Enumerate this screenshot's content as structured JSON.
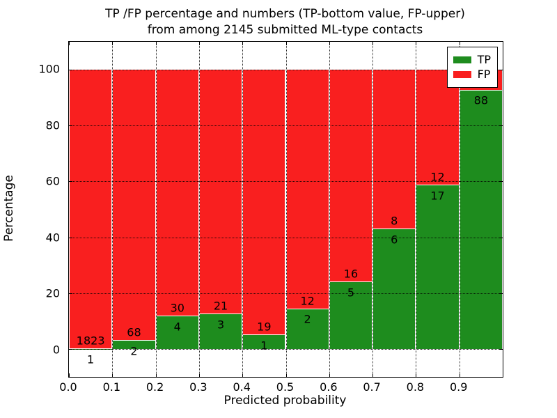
{
  "chart_data": {
    "type": "bar",
    "variant": "stacked-percentage-histogram",
    "title_lines": [
      "TP /FP percentage and numbers (TP-bottom value, FP-upper)",
      "from among 2145 submitted ML-type contacts"
    ],
    "xlabel": "Predicted probability",
    "ylabel": "Percentage",
    "xlim": [
      0.0,
      1.0
    ],
    "ylim": [
      -10,
      110
    ],
    "x_tick_labels": [
      "0.0",
      "0.1",
      "0.2",
      "0.3",
      "0.4",
      "0.5",
      "0.6",
      "0.7",
      "0.8",
      "0.9"
    ],
    "y_tick_values": [
      0,
      20,
      40,
      60,
      80,
      100
    ],
    "y_tick_labels": [
      "0",
      "20",
      "40",
      "60",
      "80",
      "100"
    ],
    "grid": "dotted, both axes, black",
    "total_contacts": 2145,
    "colors": {
      "tp": "#1e8c1e",
      "fp": "#f91f1f"
    },
    "legend": {
      "position": "upper right",
      "items": [
        {
          "label": "TP",
          "color": "#1e8c1e"
        },
        {
          "label": "FP",
          "color": "#f91f1f"
        }
      ]
    },
    "bins": [
      {
        "range": "0.0-0.1",
        "tp": 1,
        "fp": 1823,
        "tp_pct": 0.05
      },
      {
        "range": "0.1-0.2",
        "tp": 2,
        "fp": 68,
        "tp_pct": 2.86
      },
      {
        "range": "0.2-0.3",
        "tp": 4,
        "fp": 30,
        "tp_pct": 11.76
      },
      {
        "range": "0.3-0.4",
        "tp": 3,
        "fp": 21,
        "tp_pct": 12.5
      },
      {
        "range": "0.4-0.5",
        "tp": 1,
        "fp": 19,
        "tp_pct": 5.0
      },
      {
        "range": "0.5-0.6",
        "tp": 2,
        "fp": 12,
        "tp_pct": 14.29
      },
      {
        "range": "0.6-0.7",
        "tp": 5,
        "fp": 16,
        "tp_pct": 23.81
      },
      {
        "range": "0.7-0.8",
        "tp": 6,
        "fp": 8,
        "tp_pct": 42.86
      },
      {
        "range": "0.8-0.9",
        "tp": 17,
        "fp": 12,
        "tp_pct": 58.62
      },
      {
        "range": "0.9-1.0",
        "tp": 88,
        "fp": 7,
        "tp_pct": 92.63
      }
    ]
  }
}
